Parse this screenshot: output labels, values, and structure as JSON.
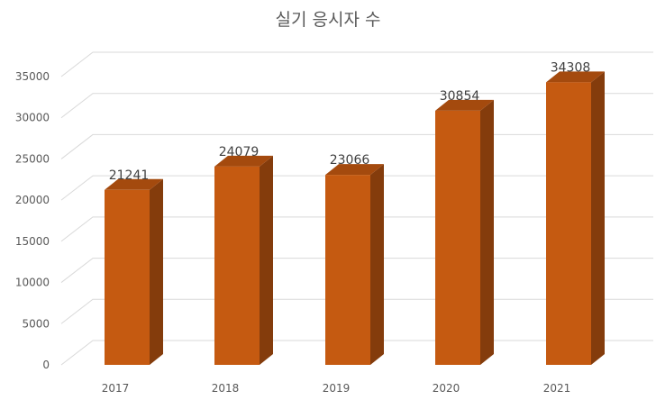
{
  "colors": {
    "bar_front": "#c55a11",
    "bar_side": "#843c0c",
    "bar_top": "#a44a0e",
    "grid": "#d9d9d9",
    "text": "#595959"
  },
  "chart_data": {
    "type": "bar",
    "title": "실기 응시자 수",
    "categories": [
      "2017",
      "2018",
      "2019",
      "2020",
      "2021"
    ],
    "values": [
      21241,
      24079,
      23066,
      30854,
      34308
    ],
    "ylim": [
      0,
      35000
    ],
    "yticks": [
      "0",
      "5000",
      "10000",
      "15000",
      "20000",
      "25000",
      "30000",
      "35000"
    ],
    "grid": true,
    "legend": "none",
    "style": "3d-column"
  }
}
